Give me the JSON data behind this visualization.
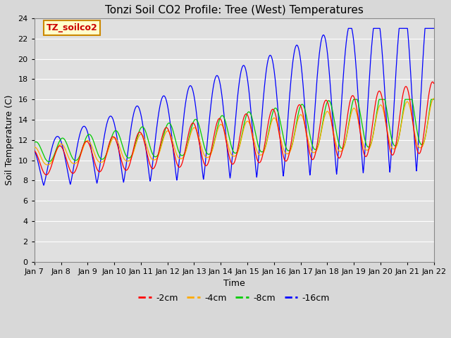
{
  "title": "Tonzi Soil CO2 Profile: Tree (West) Temperatures",
  "xlabel": "Time",
  "ylabel": "Soil Temperature (C)",
  "ylim": [
    0,
    24
  ],
  "yticks": [
    0,
    2,
    4,
    6,
    8,
    10,
    12,
    14,
    16,
    18,
    20,
    22,
    24
  ],
  "colors": {
    "-2cm": "#ff0000",
    "-4cm": "#ffaa00",
    "-8cm": "#00cc00",
    "-16cm": "#0000ff"
  },
  "legend_label": "TZ_soilco2",
  "legend_bg": "#ffffcc",
  "legend_edge": "#cc8800",
  "bg_color": "#e0e0e0",
  "grid_color": "#ffffff",
  "title_fontsize": 11,
  "axis_fontsize": 9,
  "tick_fontsize": 8,
  "legend_fontsize": 9,
  "x_tick_labels": [
    "Jan 7",
    "Jan 8",
    "Jan 9",
    "Jan 10",
    "Jan 11",
    "Jan 12",
    "Jan 13",
    "Jan 14",
    "Jan 15",
    "Jan 16",
    "Jan 17",
    "Jan 18",
    "Jan 19",
    "Jan 20",
    "Jan 21",
    "Jan 22"
  ]
}
